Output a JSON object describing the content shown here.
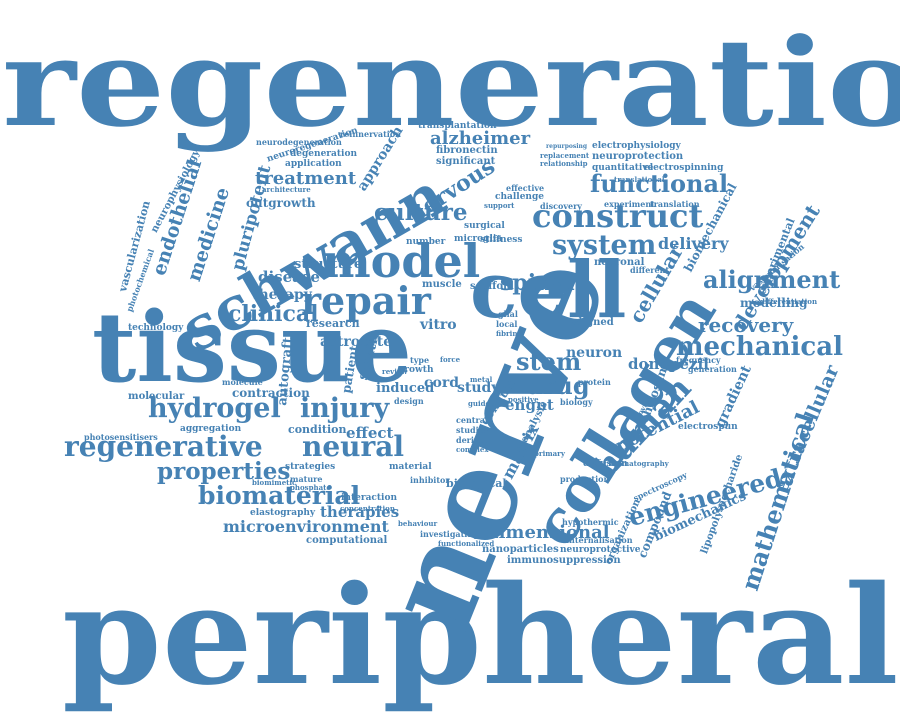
{
  "colors": {
    "word": "#4682b4",
    "background": "#ffffff"
  },
  "words": [
    "regeneration",
    "peripheral",
    "nerve",
    "tissue",
    "cell",
    "schwann",
    "collagen",
    "model",
    "repair",
    "construct",
    "hydrogel",
    "injury",
    "regenerative",
    "neural",
    "human",
    "engineered",
    "mechanical",
    "biomaterial",
    "functional",
    "system",
    "properties",
    "mathematical",
    "development",
    "alignment",
    "culture",
    "nervous",
    "clinical",
    "drug",
    "stem",
    "spinal",
    "cellular",
    "recovery",
    "extracellular",
    "treatment",
    "endothelial",
    "medicine",
    "pluripotent",
    "alzheimer",
    "dimensional",
    "microenvironment",
    "therapies",
    "computational",
    "potential",
    "donepezil",
    "neuron",
    "cord",
    "study",
    "matrix",
    "astrocyte",
    "induced",
    "autograft",
    "contraction",
    "effect",
    "condition",
    "delivery",
    "modelling",
    "biomechanical",
    "experimental",
    "chitosan",
    "gradient",
    "compound",
    "organization",
    "biomechanics",
    "lipopolysaccharide",
    "aligned",
    "vitro",
    "sciatic",
    "patient",
    "disease",
    "therapy",
    "research",
    "structure",
    "outgrowth",
    "approach",
    "neuroregeneration",
    "neurodegeneration",
    "reinnervation",
    "degeneration",
    "application",
    "transplantation",
    "fibronectin",
    "significant",
    "electrophysiology",
    "neuroprotection",
    "quantitative",
    "electrospinning",
    "vascularization",
    "neurophysiology",
    "photochemical",
    "technology",
    "molecular",
    "photosensitisers",
    "aggregation",
    "biological",
    "material",
    "interaction",
    "elastography",
    "strategies",
    "nanoparticles",
    "immunosuppression",
    "neuroprotective",
    "internalisation",
    "hypothermic",
    "spectroscopy",
    "diffusion",
    "electrospun",
    "architecture",
    "microglia",
    "number",
    "scaffold",
    "muscle",
    "surgical",
    "stiffness",
    "challenge",
    "discovery",
    "experiment",
    "translation",
    "neuronal",
    "different",
    "vascularisation",
    "differentiation",
    "frequency",
    "generation",
    "protein",
    "central",
    "studies",
    "derived",
    "complex",
    "design",
    "growth",
    "mature",
    "molecule",
    "force",
    "metal",
    "glial",
    "local",
    "fibrin",
    "positive",
    "primary",
    "production",
    "behaviour",
    "investigating",
    "functionalized",
    "inhibitor",
    "biomimetic",
    "phosphate",
    "concentration",
    "type",
    "review",
    "effective",
    "support",
    "conduit",
    "engnt",
    "analysis",
    "chromatography",
    "provide",
    "guide",
    "biology",
    "replacement",
    "relationship",
    "repurposing",
    "translational"
  ]
}
